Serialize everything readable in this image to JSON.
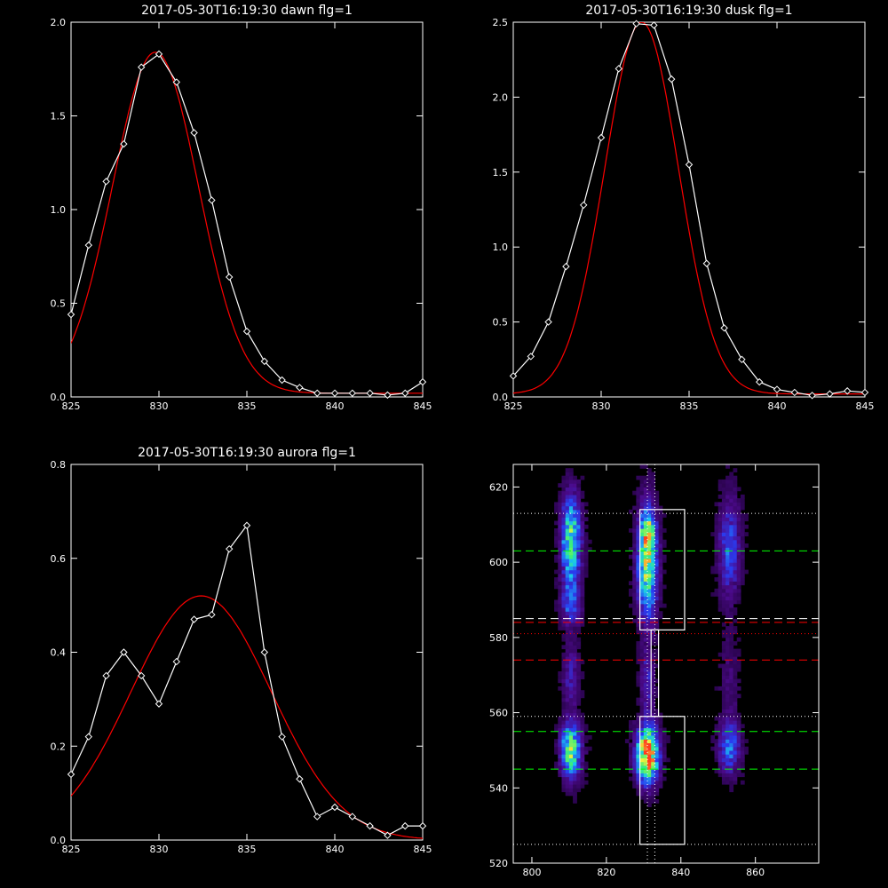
{
  "chart_data": [
    {
      "type": "line",
      "title": "2017-05-30T16:19:30 dawn flg=1",
      "xlim": [
        825,
        845
      ],
      "ylim": [
        0,
        2.0
      ],
      "xticks": [
        825,
        830,
        835,
        840,
        845
      ],
      "xtick_labels": [
        "825",
        "830",
        "835",
        "840",
        "845"
      ],
      "yticks": [
        0,
        0.5,
        1.0,
        1.5,
        2.0
      ],
      "ytick_labels": [
        "0.0",
        "0.5",
        "1.0",
        "1.5",
        "2.0"
      ],
      "series": [
        {
          "role": "data",
          "color": "#ffffff",
          "marker": "diamond",
          "x": [
            825,
            826,
            827,
            828,
            829,
            830,
            831,
            832,
            833,
            834,
            835,
            836,
            837,
            838,
            839,
            840,
            841,
            842,
            843,
            844,
            845
          ],
          "y": [
            0.44,
            0.81,
            1.15,
            1.35,
            1.76,
            1.83,
            1.68,
            1.41,
            1.05,
            0.64,
            0.35,
            0.19,
            0.09,
            0.05,
            0.02,
            0.02,
            0.02,
            0.02,
            0.01,
            0.02,
            0.08
          ]
        },
        {
          "role": "fit",
          "color": "#ff0000",
          "gaussian": {
            "amplitude": 1.82,
            "center": 829.8,
            "sigma": 2.45,
            "offset": 0.02
          }
        }
      ]
    },
    {
      "type": "line",
      "title": "2017-05-30T16:19:30 dusk flg=1",
      "xlim": [
        825,
        845
      ],
      "ylim": [
        0,
        2.5
      ],
      "xticks": [
        825,
        830,
        835,
        840,
        845
      ],
      "xtick_labels": [
        "825",
        "830",
        "835",
        "840",
        "845"
      ],
      "yticks": [
        0,
        0.5,
        1.0,
        1.5,
        2.0,
        2.5
      ],
      "ytick_labels": [
        "0.0",
        "0.5",
        "1.0",
        "1.5",
        "2.0",
        "2.5"
      ],
      "series": [
        {
          "role": "data",
          "color": "#ffffff",
          "marker": "diamond",
          "x": [
            825,
            826,
            827,
            828,
            829,
            830,
            831,
            832,
            833,
            834,
            835,
            836,
            837,
            838,
            839,
            840,
            841,
            842,
            843,
            844,
            845
          ],
          "y": [
            0.14,
            0.27,
            0.5,
            0.87,
            1.28,
            1.73,
            2.19,
            2.49,
            2.48,
            2.12,
            1.55,
            0.89,
            0.46,
            0.25,
            0.1,
            0.05,
            0.03,
            0.01,
            0.02,
            0.04,
            0.03
          ]
        },
        {
          "role": "fit",
          "color": "#ff0000",
          "gaussian": {
            "amplitude": 2.48,
            "center": 832.3,
            "sigma": 2.1,
            "offset": 0.02
          }
        }
      ]
    },
    {
      "type": "line",
      "title": "2017-05-30T16:19:30 aurora flg=1",
      "xlim": [
        825,
        845
      ],
      "ylim": [
        0,
        0.8
      ],
      "xticks": [
        825,
        830,
        835,
        840,
        845
      ],
      "xtick_labels": [
        "825",
        "830",
        "835",
        "840",
        "845"
      ],
      "yticks": [
        0,
        0.2,
        0.4,
        0.6,
        0.8
      ],
      "ytick_labels": [
        "0.0",
        "0.2",
        "0.4",
        "0.6",
        "0.8"
      ],
      "series": [
        {
          "role": "data",
          "color": "#ffffff",
          "marker": "diamond",
          "x": [
            825,
            826,
            827,
            828,
            829,
            830,
            831,
            832,
            833,
            834,
            835,
            836,
            837,
            838,
            839,
            840,
            841,
            842,
            843,
            844,
            845
          ],
          "y": [
            0.14,
            0.22,
            0.35,
            0.4,
            0.35,
            0.29,
            0.38,
            0.47,
            0.48,
            0.62,
            0.67,
            0.4,
            0.22,
            0.13,
            0.05,
            0.07,
            0.05,
            0.03,
            0.01,
            0.03,
            0.03
          ]
        },
        {
          "role": "fit",
          "color": "#ff0000",
          "gaussian": {
            "amplitude": 0.52,
            "center": 832.4,
            "sigma": 4.0,
            "offset": 0.0
          }
        }
      ]
    },
    {
      "type": "heatmap",
      "xlim": [
        795,
        877
      ],
      "ylim": [
        520,
        626
      ],
      "xticks": [
        800,
        820,
        840,
        860
      ],
      "xtick_labels": [
        "800",
        "820",
        "840",
        "860"
      ],
      "yticks": [
        520,
        540,
        560,
        580,
        600,
        620
      ],
      "ytick_labels": [
        "520",
        "540",
        "560",
        "580",
        "600",
        "620"
      ],
      "colormap": [
        "#1a0030",
        "#4b0a8a",
        "#2a3cf0",
        "#19c6f0",
        "#3cf078",
        "#f0f03c",
        "#ff3c1e"
      ],
      "blobs": [
        {
          "x": 810.5,
          "y": 606,
          "sx": 1.8,
          "sy": 8,
          "amp": 0.62
        },
        {
          "x": 810.5,
          "y": 589,
          "sx": 1.8,
          "sy": 4,
          "amp": 0.3
        },
        {
          "x": 810.5,
          "y": 550,
          "sx": 1.8,
          "sy": 5,
          "amp": 0.68
        },
        {
          "x": 810.5,
          "y": 570,
          "sx": 1.5,
          "sy": 6,
          "amp": 0.2
        },
        {
          "x": 831,
          "y": 600,
          "sx": 1.8,
          "sy": 10,
          "amp": 0.72
        },
        {
          "x": 831,
          "y": 608,
          "sx": 1.2,
          "sy": 2.5,
          "amp": 0.45
        },
        {
          "x": 831,
          "y": 549,
          "sx": 2.0,
          "sy": 5,
          "amp": 1.0
        },
        {
          "x": 831,
          "y": 568,
          "sx": 1.3,
          "sy": 6,
          "amp": 0.22
        },
        {
          "x": 853,
          "y": 604,
          "sx": 2.0,
          "sy": 9,
          "amp": 0.32
        },
        {
          "x": 853,
          "y": 551,
          "sx": 2.0,
          "sy": 5,
          "amp": 0.36
        },
        {
          "x": 853,
          "y": 570,
          "sx": 1.8,
          "sy": 8,
          "amp": 0.1
        }
      ],
      "boxes": [
        {
          "x0": 829,
          "x1": 841,
          "y0": 582,
          "y1": 614
        },
        {
          "x0": 829,
          "x1": 841,
          "y0": 525,
          "y1": 559
        },
        {
          "x0": 832,
          "x1": 834,
          "y0": 559,
          "y1": 582
        }
      ],
      "hlines": [
        {
          "y": 613,
          "color": "#ffffff",
          "style": "dotted"
        },
        {
          "y": 603,
          "color": "#00ff00",
          "style": "dashed"
        },
        {
          "y": 585,
          "color": "#ffffff",
          "style": "dashed"
        },
        {
          "y": 584,
          "color": "#ff0000",
          "style": "dashed"
        },
        {
          "y": 581,
          "color": "#ff0000",
          "style": "dotted"
        },
        {
          "y": 574,
          "color": "#ff0000",
          "style": "dashed"
        },
        {
          "y": 559,
          "color": "#ffffff",
          "style": "dotted"
        },
        {
          "y": 555,
          "color": "#00ff00",
          "style": "dashed"
        },
        {
          "y": 545,
          "color": "#00ff00",
          "style": "dashed"
        },
        {
          "y": 525,
          "color": "#ffffff",
          "style": "dotted"
        }
      ],
      "vlines": [
        {
          "x": 831,
          "color": "#ffffff",
          "style": "dotted"
        },
        {
          "x": 833,
          "color": "#ffffff",
          "style": "dotted"
        }
      ]
    }
  ]
}
